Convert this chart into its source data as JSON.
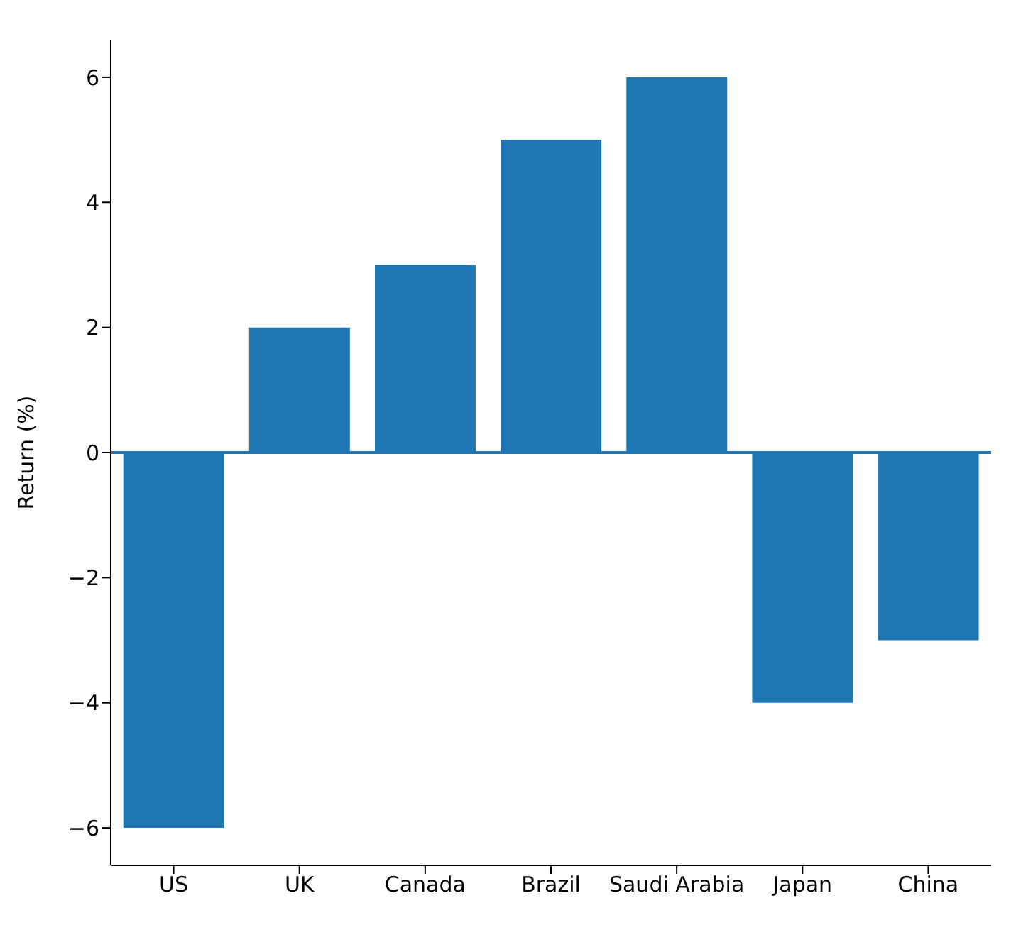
{
  "chart_data": {
    "type": "bar",
    "ylabel": "Return (%)",
    "categories": [
      "US",
      "UK",
      "Canada",
      "Brazil",
      "Saudi Arabia",
      "Japan",
      "China"
    ],
    "values": [
      -6,
      2,
      3,
      5,
      6,
      -4,
      -3
    ],
    "color": "#1f77b4",
    "ylim": [
      -6.6,
      6.6
    ],
    "yticks": [
      -6,
      -4,
      -2,
      0,
      2,
      4,
      6
    ],
    "ref_lines": [
      {
        "axis": "y",
        "value": 0,
        "color": "#1f77b4"
      }
    ],
    "grid": false,
    "legend": false
  }
}
